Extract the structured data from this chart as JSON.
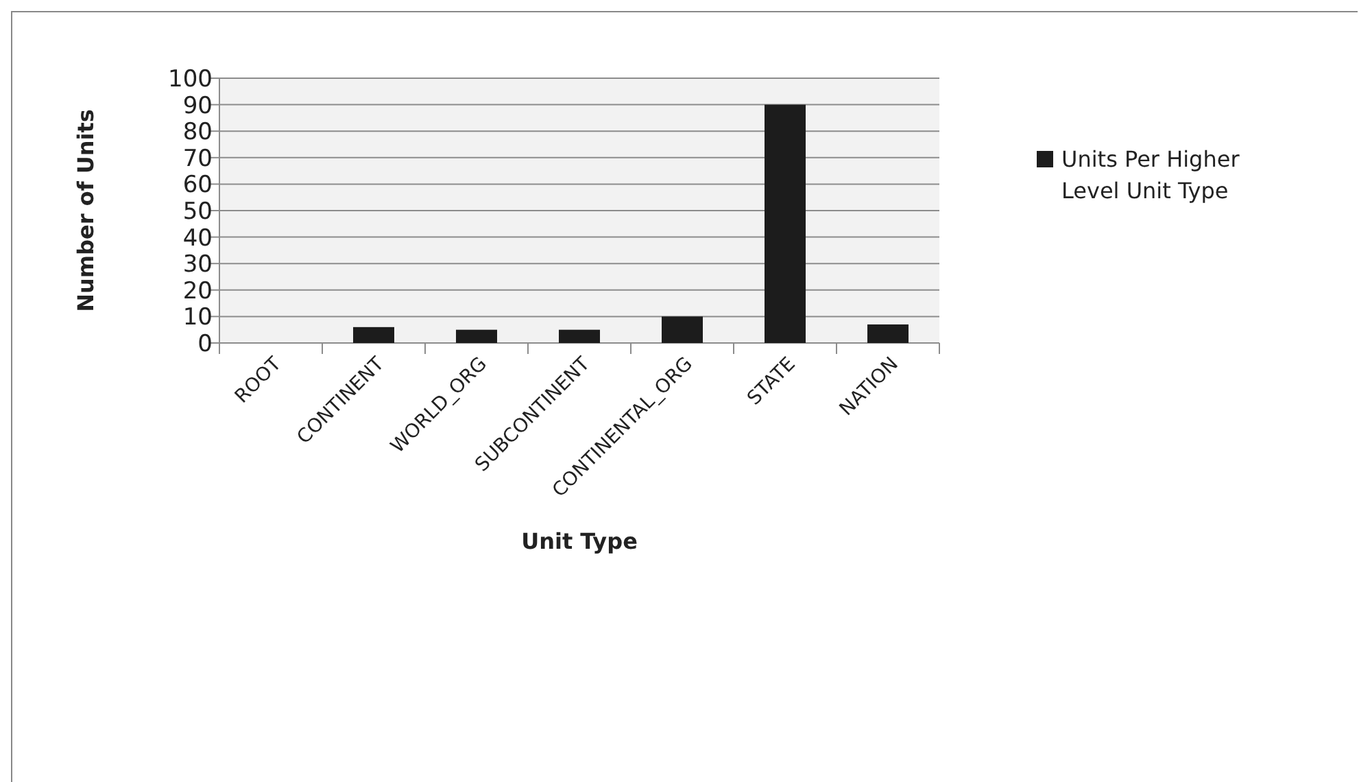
{
  "chart_data": {
    "type": "bar",
    "xlabel": "Unit Type",
    "ylabel": "Number of Units",
    "categories": [
      "ROOT",
      "CONTINENT",
      "WORLD_ORG",
      "SUBCONTINENT",
      "CONTINENTAL_ORG",
      "STATE",
      "NATION"
    ],
    "series": [
      {
        "name": "Units Per Higher Level Unit Type",
        "color": "#1c1c1c",
        "values": [
          0,
          6,
          5,
          5,
          10,
          90,
          7
        ]
      }
    ],
    "ylim": [
      0,
      100
    ],
    "yticks": [
      0,
      10,
      20,
      30,
      40,
      50,
      60,
      70,
      80,
      90,
      100
    ],
    "grid": "y",
    "legend": "right"
  }
}
